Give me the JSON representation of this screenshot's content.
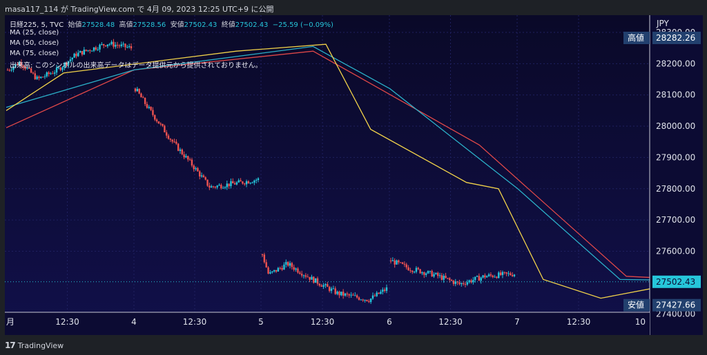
{
  "header": {
    "caption": "masa117_114 が TradingView.com で 4月 09, 2023 12:25 UTC+9 に公開"
  },
  "legend": {
    "symbol": "日経225, 5, TVC",
    "open_label": "始値",
    "open_value": "27528.48",
    "high_label": "高値",
    "high_value": "27528.56",
    "low_label": "安値",
    "low_value": "27502.43",
    "close_label": "終値",
    "close_value": "27502.43",
    "change": "−25.59 (−0.09%)",
    "ma_lines": [
      "MA (25, close)",
      "MA (50, close)",
      "MA (75, close)"
    ],
    "volume_note": "出来高: このシンボルの出来高データはデータ提供元から提供されておりません。"
  },
  "branding": {
    "name": "TradingView"
  },
  "colors": {
    "background": "#0c0b33",
    "bull": "#26c6da",
    "bear": "#ef5350",
    "ma25": "#f2d34a",
    "ma50": "#2bb0c8",
    "ma75": "#e04848",
    "badge": "#22406e"
  },
  "chart_data": {
    "type": "candlestick",
    "currency": "JPY",
    "y_ticks": [
      "28200.00",
      "28100.00",
      "28000.00",
      "27900.00",
      "27800.00",
      "27700.00",
      "27600.00"
    ],
    "partial_y_ticks": [
      "28300.00",
      "27400.00"
    ],
    "ylim": [
      27405,
      28355
    ],
    "x_tick_labels": [
      "月",
      "12:30",
      "4",
      "12:30",
      "5",
      "12:30",
      "6",
      "12:30",
      "7",
      "12:30",
      "10"
    ],
    "high_marker": {
      "label": "高値",
      "value": 28282.26
    },
    "low_marker": {
      "label": "安値",
      "value": 27427.66
    },
    "last_price": {
      "value": 27502.43,
      "label": "27502.43"
    },
    "sessions": [
      {
        "name": "3",
        "anchors": [
          [
            0,
            28180
          ],
          [
            10,
            28205
          ],
          [
            24,
            28150
          ],
          [
            40,
            28180
          ],
          [
            55,
            28230
          ],
          [
            80,
            28265
          ],
          [
            99,
            28250
          ]
        ]
      },
      {
        "name": "4",
        "anchors": [
          [
            0,
            28120
          ],
          [
            10,
            28060
          ],
          [
            30,
            27950
          ],
          [
            45,
            27880
          ],
          [
            60,
            27805
          ],
          [
            85,
            27820
          ],
          [
            99,
            27830
          ]
        ]
      },
      {
        "name": "5",
        "anchors": [
          [
            0,
            27590
          ],
          [
            5,
            27525
          ],
          [
            20,
            27560
          ],
          [
            40,
            27510
          ],
          [
            60,
            27465
          ],
          [
            85,
            27445
          ],
          [
            99,
            27480
          ]
        ]
      },
      {
        "name": "6",
        "anchors": [
          [
            0,
            27570
          ],
          [
            15,
            27545
          ],
          [
            35,
            27525
          ],
          [
            55,
            27495
          ],
          [
            75,
            27520
          ],
          [
            99,
            27528
          ]
        ]
      }
    ],
    "ma25": [
      [
        28050,
        0
      ],
      [
        28170,
        0.09
      ],
      [
        28240,
        0.36
      ],
      [
        28262,
        0.5
      ],
      [
        27990,
        0.57
      ],
      [
        27820,
        0.72
      ],
      [
        27800,
        0.77
      ],
      [
        27510,
        0.84
      ],
      [
        27450,
        0.93
      ],
      [
        27485,
        1.02
      ],
      [
        27530,
        1.06
      ],
      [
        27510,
        1.12
      ]
    ],
    "ma50": [
      [
        28060,
        0
      ],
      [
        28180,
        0.2
      ],
      [
        28255,
        0.48
      ],
      [
        28120,
        0.6
      ],
      [
        27800,
        0.8
      ],
      [
        27510,
        0.96
      ],
      [
        27505,
        1.12
      ]
    ],
    "ma75": [
      [
        27995,
        0
      ],
      [
        28180,
        0.2
      ],
      [
        28240,
        0.48
      ],
      [
        27940,
        0.74
      ],
      [
        27520,
        0.97
      ],
      [
        27505,
        1.12
      ]
    ]
  }
}
